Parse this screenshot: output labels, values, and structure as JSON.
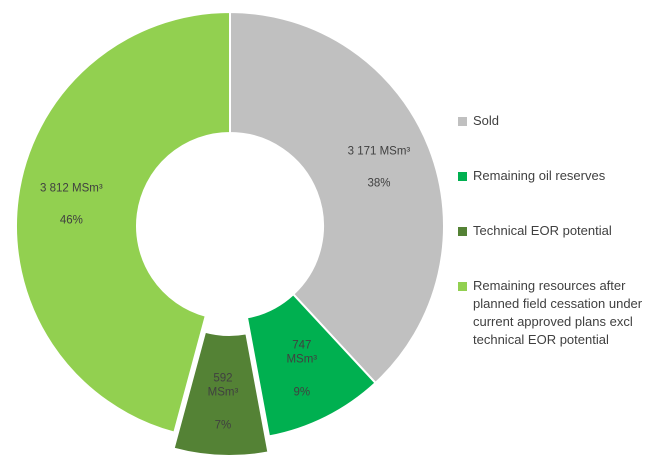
{
  "chart_data": {
    "type": "donut",
    "categories": [
      "Sold",
      "Remaining oil reserves",
      "Technical EOR potential",
      "Remaining resources after planned field cessation under current approved plans excl technical EOR potential"
    ],
    "values": [
      3171,
      747,
      592,
      3812
    ],
    "value_labels": [
      "3 171 MSm³",
      "747 MSm³",
      "592 MSm³",
      "3 812 MSm³"
    ],
    "shares": [
      38,
      9,
      7,
      46
    ],
    "share_labels": [
      "38%",
      "9%",
      "7%",
      "46%"
    ],
    "colors": [
      "#c0c0c0",
      "#00b050",
      "#548235",
      "#92d050"
    ],
    "exploded": [
      false,
      false,
      true,
      false
    ],
    "legend": "right"
  }
}
